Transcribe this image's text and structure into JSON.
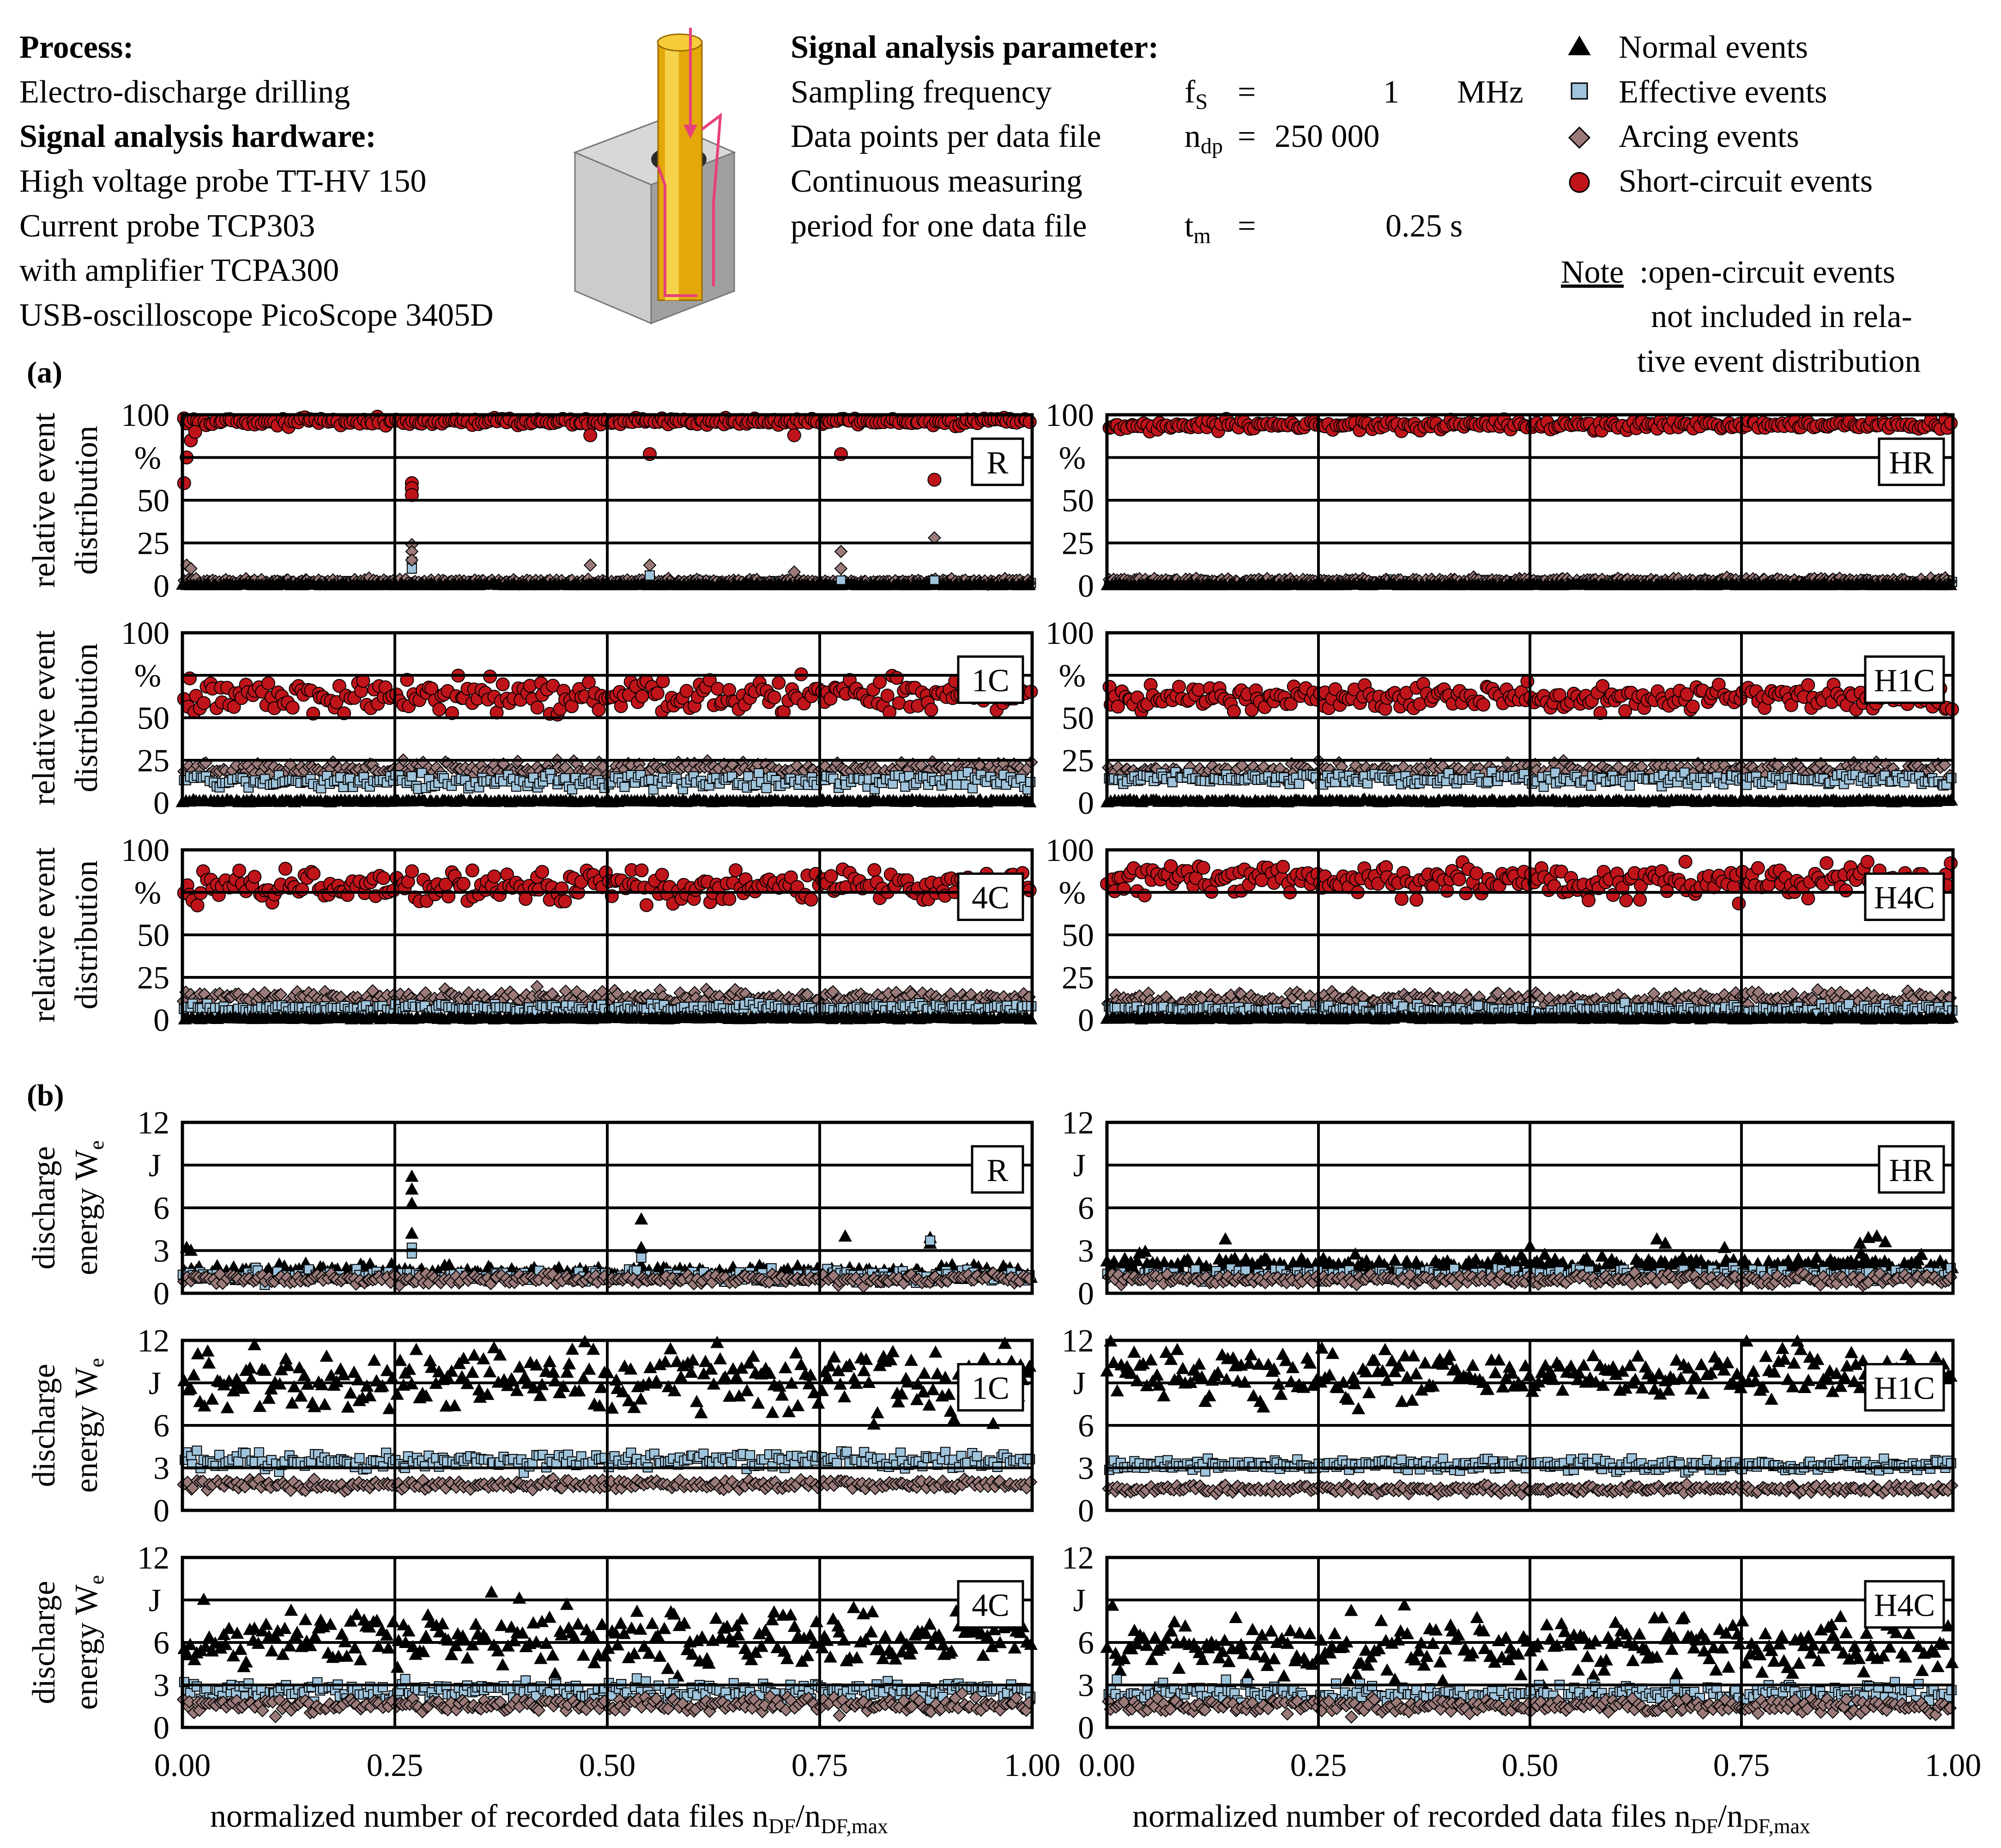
{
  "header": {
    "process_title": "Process:",
    "process_value": "Electro-discharge drilling",
    "hardware_title": "Signal analysis hardware:",
    "hardware_lines": [
      "High voltage probe TT-HV 150",
      "Current probe TCP303",
      "with amplifier TCPA300",
      "USB-oscilloscope PicoScope 3405D"
    ],
    "params_title": "Signal analysis parameter:",
    "params": [
      {
        "label": "Sampling frequency",
        "symbol": "f",
        "sub": "S",
        "eq": "=",
        "value": "1",
        "unit": "MHz"
      },
      {
        "label": "Data points per data file",
        "symbol": "n",
        "sub": "dp",
        "eq": "=",
        "value": "250 000",
        "unit": ""
      },
      {
        "label": "Continuous measuring",
        "symbol": "",
        "sub": "",
        "eq": "",
        "value": "",
        "unit": ""
      },
      {
        "label": "period for one data file",
        "symbol": "t",
        "sub": "m",
        "eq": "=",
        "value": "0.25 s",
        "unit": ""
      }
    ]
  },
  "legend": {
    "items": [
      "Normal events",
      "Effective events",
      "Arcing events",
      "Short-circuit events"
    ],
    "note_label": "Note",
    "note_lines": [
      ":open-circuit events",
      "not included in rela-",
      "tive event distribution"
    ]
  },
  "colors": {
    "normal": "#000000",
    "effective": "#9fc4dc",
    "arcing": "#9b7a7a",
    "short": "#c0141b",
    "grid": "#000000"
  },
  "section_labels": {
    "a": "(a)",
    "b": "(b)"
  },
  "axes": {
    "dist_ylabel_1": "relative event",
    "dist_ylabel_2": "distribution",
    "dist_unit": "%",
    "energy_ylabel_1": "discharge",
    "energy_ylabel_2": "energy W",
    "energy_ylabel_sub": "e",
    "energy_unit": "J",
    "xlabel_main": "normalized number of recorded data files n",
    "xlabel_sub1": "DF",
    "xlabel_slash": "/n",
    "xlabel_sub2": "DF,max",
    "xticks": [
      "0.00",
      "0.25",
      "0.50",
      "0.75",
      "1.00"
    ],
    "dist_yticks": [
      "100",
      "",
      "50",
      "25",
      "0"
    ],
    "energy_yticks": [
      "12",
      "",
      "6",
      "3",
      "0"
    ]
  },
  "chart_data": [
    {
      "type": "scatter",
      "panel": "R",
      "quantity": "relative event distribution",
      "ylim": [
        0,
        100
      ],
      "xlim": [
        0,
        1
      ],
      "series": [
        {
          "key": "short",
          "level": 96,
          "spread": 1.5
        },
        {
          "key": "effective",
          "level": 1.5,
          "spread": 1
        },
        {
          "key": "arcing",
          "level": 2.5,
          "spread": 1
        },
        {
          "key": "normal",
          "level": 0.5,
          "spread": 0.5
        }
      ],
      "outliers": [
        {
          "key": "short",
          "points": [
            [
              0.002,
              60
            ],
            [
              0.005,
              75
            ],
            [
              0.01,
              85
            ],
            [
              0.015,
              90
            ],
            [
              0.27,
              60
            ],
            [
              0.27,
              57
            ],
            [
              0.27,
              53
            ],
            [
              0.48,
              88
            ],
            [
              0.55,
              77
            ],
            [
              0.72,
              88
            ],
            [
              0.775,
              77
            ],
            [
              0.885,
              62
            ]
          ]
        },
        {
          "key": "effective",
          "points": [
            [
              0.27,
              14
            ],
            [
              0.27,
              10
            ],
            [
              0.55,
              6
            ],
            [
              0.775,
              3
            ],
            [
              0.885,
              3
            ]
          ]
        },
        {
          "key": "arcing",
          "points": [
            [
              0.27,
              24
            ],
            [
              0.27,
              20
            ],
            [
              0.27,
              15
            ],
            [
              0.005,
              12
            ],
            [
              0.01,
              10
            ],
            [
              0.48,
              12
            ],
            [
              0.55,
              12
            ],
            [
              0.72,
              8
            ],
            [
              0.775,
              20
            ],
            [
              0.775,
              10
            ],
            [
              0.885,
              28
            ]
          ]
        }
      ]
    },
    {
      "type": "scatter",
      "panel": "HR",
      "quantity": "relative event distribution",
      "ylim": [
        0,
        100
      ],
      "xlim": [
        0,
        1
      ],
      "series": [
        {
          "key": "short",
          "level": 94,
          "spread": 2
        },
        {
          "key": "effective",
          "level": 2,
          "spread": 1
        },
        {
          "key": "arcing",
          "level": 3,
          "spread": 1
        },
        {
          "key": "normal",
          "level": 0.5,
          "spread": 0.5
        }
      ]
    },
    {
      "type": "scatter",
      "panel": "1C",
      "quantity": "relative event distribution",
      "ylim": [
        0,
        100
      ],
      "xlim": [
        0,
        1
      ],
      "series": [
        {
          "key": "short",
          "level": 63,
          "spread": 7
        },
        {
          "key": "arcing",
          "level": 20,
          "spread": 3
        },
        {
          "key": "effective",
          "level": 13,
          "spread": 3
        },
        {
          "key": "normal",
          "level": 1,
          "spread": 0.5
        }
      ]
    },
    {
      "type": "scatter",
      "panel": "H1C",
      "quantity": "relative event distribution",
      "ylim": [
        0,
        100
      ],
      "xlim": [
        0,
        1
      ],
      "series": [
        {
          "key": "short",
          "level": 62,
          "spread": 5
        },
        {
          "key": "arcing",
          "level": 19,
          "spread": 3
        },
        {
          "key": "effective",
          "level": 14,
          "spread": 2.5
        },
        {
          "key": "normal",
          "level": 1,
          "spread": 0.5
        }
      ]
    },
    {
      "type": "scatter",
      "panel": "4C",
      "quantity": "relative event distribution",
      "ylim": [
        0,
        100
      ],
      "xlim": [
        0,
        1
      ],
      "series": [
        {
          "key": "short",
          "level": 79,
          "spread": 7
        },
        {
          "key": "arcing",
          "level": 13,
          "spread": 3
        },
        {
          "key": "effective",
          "level": 7,
          "spread": 2
        },
        {
          "key": "normal",
          "level": 1,
          "spread": 0.5
        }
      ]
    },
    {
      "type": "scatter",
      "panel": "H4C",
      "quantity": "relative event distribution",
      "ylim": [
        0,
        100
      ],
      "xlim": [
        0,
        1
      ],
      "series": [
        {
          "key": "short",
          "level": 82,
          "spread": 7
        },
        {
          "key": "arcing",
          "level": 12,
          "spread": 3
        },
        {
          "key": "effective",
          "level": 6,
          "spread": 2
        },
        {
          "key": "normal",
          "level": 1,
          "spread": 0.5
        }
      ]
    },
    {
      "type": "scatter",
      "panel": "R",
      "quantity": "discharge energy",
      "ylim": [
        0,
        12
      ],
      "xlim": [
        0,
        1
      ],
      "series": [
        {
          "key": "normal",
          "level": 1.5,
          "spread": 0.35
        },
        {
          "key": "effective",
          "level": 1.2,
          "spread": 0.3
        },
        {
          "key": "arcing",
          "level": 1.0,
          "spread": 0.25
        }
      ],
      "outliers": [
        {
          "key": "normal",
          "points": [
            [
              0.005,
              3.2
            ],
            [
              0.01,
              3.0
            ],
            [
              0.27,
              8.2
            ],
            [
              0.27,
              7.3
            ],
            [
              0.27,
              6.3
            ],
            [
              0.27,
              4.2
            ],
            [
              0.54,
              5.2
            ],
            [
              0.54,
              3.2
            ],
            [
              0.78,
              4.0
            ],
            [
              0.88,
              3.9
            ],
            [
              0.88,
              3.5
            ]
          ]
        },
        {
          "key": "effective",
          "points": [
            [
              0.27,
              3.2
            ],
            [
              0.27,
              2.8
            ],
            [
              0.54,
              2.5
            ],
            [
              0.88,
              3.7
            ]
          ]
        }
      ]
    },
    {
      "type": "scatter",
      "panel": "HR",
      "quantity": "discharge energy",
      "ylim": [
        0,
        12
      ],
      "xlim": [
        0,
        1
      ],
      "series": [
        {
          "key": "normal",
          "level": 2.0,
          "spread": 0.45
        },
        {
          "key": "effective",
          "level": 1.3,
          "spread": 0.3
        },
        {
          "key": "arcing",
          "level": 1.0,
          "spread": 0.25
        }
      ],
      "outliers": [
        {
          "key": "normal",
          "points": [
            [
              0.14,
              3.8
            ],
            [
              0.5,
              3.3
            ],
            [
              0.65,
              3.8
            ],
            [
              0.66,
              3.5
            ],
            [
              0.73,
              3.2
            ],
            [
              0.89,
              3.5
            ],
            [
              0.9,
              3.9
            ],
            [
              0.91,
              4.0
            ],
            [
              0.92,
              3.6
            ]
          ]
        }
      ]
    },
    {
      "type": "scatter",
      "panel": "1C",
      "quantity": "discharge energy",
      "ylim": [
        0,
        12
      ],
      "xlim": [
        0,
        1
      ],
      "series": [
        {
          "key": "normal",
          "level": 9.3,
          "spread": 1.7
        },
        {
          "key": "effective",
          "level": 3.5,
          "spread": 0.4
        },
        {
          "key": "arcing",
          "level": 1.8,
          "spread": 0.25
        }
      ]
    },
    {
      "type": "scatter",
      "panel": "H1C",
      "quantity": "discharge energy",
      "ylim": [
        0,
        12
      ],
      "xlim": [
        0,
        1
      ],
      "series": [
        {
          "key": "normal",
          "level": 9.5,
          "spread": 1.4
        },
        {
          "key": "effective",
          "level": 3.2,
          "spread": 0.3
        },
        {
          "key": "arcing",
          "level": 1.5,
          "spread": 0.2
        }
      ]
    },
    {
      "type": "scatter",
      "panel": "4C",
      "quantity": "discharge energy",
      "ylim": [
        0,
        12
      ],
      "xlim": [
        0,
        1
      ],
      "series": [
        {
          "key": "normal",
          "level": 6.2,
          "spread": 1.5
        },
        {
          "key": "effective",
          "level": 2.6,
          "spread": 0.5
        },
        {
          "key": "arcing",
          "level": 1.6,
          "spread": 0.4
        }
      ]
    },
    {
      "type": "scatter",
      "panel": "H4C",
      "quantity": "discharge energy",
      "ylim": [
        0,
        12
      ],
      "xlim": [
        0,
        1
      ],
      "series": [
        {
          "key": "normal",
          "level": 5.8,
          "spread": 1.6
        },
        {
          "key": "effective",
          "level": 2.4,
          "spread": 0.5
        },
        {
          "key": "arcing",
          "level": 1.5,
          "spread": 0.35
        }
      ]
    }
  ]
}
